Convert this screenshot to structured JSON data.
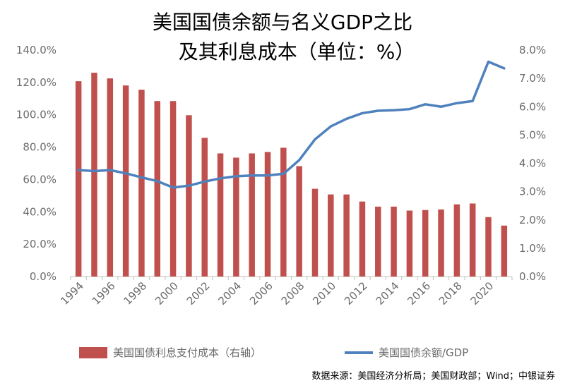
{
  "title_line1": "美国国债余额与名义GDP之比",
  "title_line2": "及其利息成本（单位：%）",
  "source": "数据来源：美国经济分析局；美国财政部；Wind；中银证券",
  "chart_data": {
    "type": "bar+line",
    "years": [
      1994,
      1995,
      1996,
      1997,
      1998,
      1999,
      2000,
      2001,
      2002,
      2003,
      2004,
      2005,
      2006,
      2007,
      2008,
      2009,
      2010,
      2011,
      2012,
      2013,
      2014,
      2015,
      2016,
      2017,
      2018,
      2019,
      2020,
      2021
    ],
    "x_tick_labels": [
      "1994",
      "1996",
      "1998",
      "2000",
      "2002",
      "2004",
      "2006",
      "2008",
      "2010",
      "2012",
      "2014",
      "2016",
      "2018",
      "2020"
    ],
    "left_axis": {
      "ticks": [
        "0.0%",
        "20.0%",
        "40.0%",
        "60.0%",
        "80.0%",
        "100.0%",
        "120.0%",
        "140.0%"
      ],
      "ylim": [
        0,
        140
      ]
    },
    "right_axis": {
      "ticks": [
        "0.0%",
        "1.0%",
        "2.0%",
        "3.0%",
        "4.0%",
        "5.0%",
        "6.0%",
        "7.0%",
        "8.0%"
      ],
      "ylim": [
        0,
        8
      ]
    },
    "series": [
      {
        "name": "美国国债利息支付成本（右轴）",
        "type": "bar",
        "axis": "right",
        "color": "#c0504d",
        "values": [
          6.9,
          7.2,
          7.0,
          6.75,
          6.6,
          6.2,
          6.2,
          5.7,
          4.9,
          4.35,
          4.2,
          4.35,
          4.4,
          4.55,
          3.9,
          3.1,
          2.9,
          2.9,
          2.65,
          2.47,
          2.47,
          2.33,
          2.35,
          2.37,
          2.55,
          2.58,
          2.1,
          1.8
        ]
      },
      {
        "name": "美国国债余额/GDP",
        "type": "line",
        "axis": "left",
        "color": "#4f81bd",
        "values": [
          65.8,
          65.2,
          65.8,
          63.8,
          61.3,
          59.0,
          55.0,
          56.2,
          58.7,
          60.7,
          62.0,
          62.5,
          62.5,
          63.5,
          72.0,
          84.8,
          92.8,
          97.5,
          101.0,
          102.5,
          102.8,
          103.5,
          106.5,
          105.0,
          107.2,
          108.5,
          132.8,
          128.7
        ]
      }
    ]
  }
}
